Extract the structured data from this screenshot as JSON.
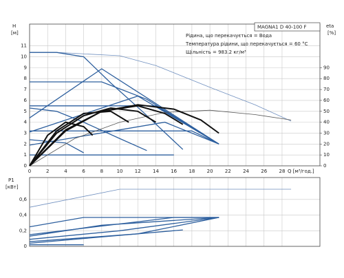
{
  "chart_data": [
    {
      "type": "line",
      "title": "MAGNA1 D 40-100 F",
      "annotations": [
        "Рідина, що перекачується = Вода",
        "Температура рідини, що перекачується = 60 °C",
        "Щільність = 983.2 кг/м³"
      ],
      "y_label": "H",
      "y_unit": "[м]",
      "y2_label": "eta",
      "y2_unit": "[%]",
      "x_label": "Q [м³/год.]",
      "xlim": [
        0,
        32.2
      ],
      "xticks": [
        0,
        2,
        4,
        6,
        8,
        10,
        12,
        14,
        16,
        18,
        20,
        22,
        24,
        26,
        28
      ],
      "ylim": [
        0,
        13
      ],
      "yticks": [
        0,
        1,
        2,
        3,
        4,
        5,
        6,
        7,
        8,
        9,
        10,
        11
      ],
      "y2lim": [
        0,
        130
      ],
      "y2ticks": [
        0,
        10,
        20,
        30,
        40,
        50,
        60,
        70,
        80,
        90
      ],
      "grid": true,
      "series": [
        {
          "color": "#6f8fbf",
          "x": [
            0,
            3,
            10,
            14,
            20,
            25,
            29
          ],
          "values": [
            10.4,
            10.4,
            10.1,
            9.2,
            7.2,
            5.6,
            4.1
          ]
        },
        {
          "color": "#2d5f9e",
          "x": [
            0,
            3,
            6,
            9,
            12.5,
            17
          ],
          "values": [
            10.4,
            10.4,
            10,
            7.6,
            5.0,
            1.5
          ]
        },
        {
          "color": "#2d5f9e",
          "x": [
            0,
            8,
            13,
            21
          ],
          "values": [
            7.7,
            7.7,
            6.1,
            2.0
          ]
        },
        {
          "color": "#2d5f9e",
          "x": [
            0,
            8,
            21
          ],
          "values": [
            4.4,
            8.9,
            2.0
          ]
        },
        {
          "color": "#2d5f9e",
          "x": [
            0,
            14,
            21
          ],
          "values": [
            5.5,
            5.5,
            2.0
          ]
        },
        {
          "color": "#2d5f9e",
          "x": [
            0,
            12,
            21
          ],
          "values": [
            3.1,
            6.4,
            2.0
          ]
        },
        {
          "color": "#2d5f9e",
          "x": [
            0,
            18,
            21
          ],
          "values": [
            3.2,
            3.2,
            2.0
          ]
        },
        {
          "color": "#2d5f9e",
          "x": [
            0,
            15,
            21
          ],
          "values": [
            1.9,
            4.0,
            2.0
          ]
        },
        {
          "color": "#2d5f9e",
          "x": [
            0,
            3,
            6,
            10,
            13
          ],
          "values": [
            5.3,
            5.0,
            4.0,
            2.5,
            1.4
          ]
        },
        {
          "color": "#2d5f9e",
          "x": [
            0,
            4,
            6
          ],
          "values": [
            2.4,
            2.1,
            1.2
          ]
        },
        {
          "color": "#2d5f9e",
          "x": [
            0,
            12,
            16
          ],
          "values": [
            1.0,
            1.0,
            1.0
          ]
        },
        {
          "color": "#555555",
          "axis": "y2",
          "x": [
            0,
            5,
            10,
            15,
            20,
            25,
            29
          ],
          "values": [
            0,
            25,
            40,
            49,
            51,
            47,
            42
          ]
        },
        {
          "color": "#111111",
          "axis": "y2",
          "x": [
            0,
            4,
            8,
            12,
            16,
            19,
            21
          ],
          "values": [
            0,
            32,
            50,
            56,
            52,
            42,
            30
          ]
        },
        {
          "color": "#111111",
          "axis": "y2",
          "x": [
            0,
            4,
            8,
            12,
            15,
            17
          ],
          "values": [
            0,
            33,
            50,
            55,
            48,
            38
          ]
        },
        {
          "color": "#111111",
          "axis": "y2",
          "x": [
            0,
            3,
            6,
            9,
            12,
            14
          ],
          "values": [
            0,
            30,
            46,
            53,
            50,
            40
          ]
        },
        {
          "color": "#111111",
          "axis": "y2",
          "x": [
            0,
            3,
            6,
            9,
            11
          ],
          "values": [
            0,
            32,
            48,
            50,
            40
          ]
        },
        {
          "color": "#111111",
          "axis": "y2",
          "x": [
            0,
            2,
            4,
            6,
            7
          ],
          "values": [
            0,
            28,
            40,
            36,
            28
          ]
        }
      ]
    },
    {
      "type": "line",
      "y_label": "P1",
      "y_unit": "[кВт]",
      "xlim": [
        0,
        32.2
      ],
      "xticks": [
        0,
        2,
        4,
        6,
        8,
        10,
        12,
        14,
        16,
        18,
        20,
        22,
        24,
        26,
        28
      ],
      "ylim": [
        0,
        0.88
      ],
      "yticks": [
        0,
        {
          "value": 0.2,
          "label": "0,2"
        },
        {
          "value": 0.4,
          "label": "0,4"
        },
        {
          "value": 0.6,
          "label": "0,6"
        }
      ],
      "grid": true,
      "series": [
        {
          "color": "#6f8fbf",
          "x": [
            0,
            10,
            29
          ],
          "values": [
            0.5,
            0.73,
            0.73
          ]
        },
        {
          "color": "#2d5f9e",
          "x": [
            0,
            6,
            21
          ],
          "values": [
            0.25,
            0.37,
            0.37
          ]
        },
        {
          "color": "#2d5f9e",
          "x": [
            0,
            8,
            21
          ],
          "values": [
            0.13,
            0.27,
            0.37
          ]
        },
        {
          "color": "#2d5f9e",
          "x": [
            0,
            10,
            21
          ],
          "values": [
            0.09,
            0.2,
            0.37
          ]
        },
        {
          "color": "#2d5f9e",
          "x": [
            0,
            12,
            21
          ],
          "values": [
            0.06,
            0.16,
            0.37
          ]
        },
        {
          "color": "#2d5f9e",
          "x": [
            0,
            6,
            17
          ],
          "values": [
            0.04,
            0.1,
            0.21
          ]
        },
        {
          "color": "#2d5f9e",
          "x": [
            0,
            6
          ],
          "values": [
            0.02,
            0.02
          ]
        },
        {
          "color": "#2d5f9e",
          "x": [
            0,
            16,
            21
          ],
          "values": [
            0.15,
            0.37,
            0.37
          ]
        }
      ]
    }
  ]
}
